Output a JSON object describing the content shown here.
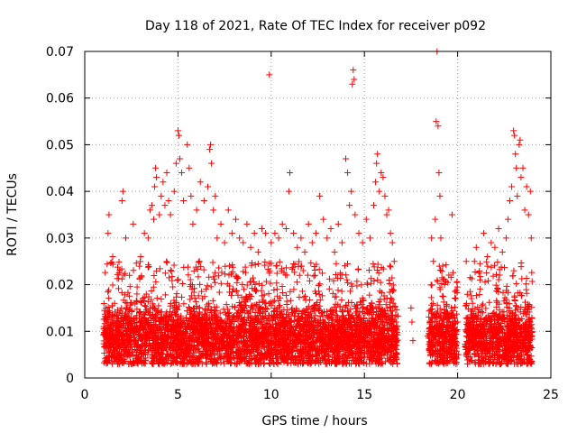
{
  "chart_data": {
    "type": "scatter",
    "title": "Day 118 of 2021, Rate Of TEC Index for receiver p092",
    "xlabel": "GPS time / hours",
    "ylabel": "ROTI / TECUs",
    "xlim": [
      0,
      25
    ],
    "ylim": [
      0,
      0.07
    ],
    "xticks": [
      "0",
      "5",
      "10",
      "15",
      "20",
      "25"
    ],
    "yticks": [
      "0",
      "0.01",
      "0.02",
      "0.03",
      "0.04",
      "0.05",
      "0.06",
      "0.07"
    ],
    "grid": true,
    "marker": "plus",
    "color": "#ff0000",
    "series": [
      {
        "points": [
          [
            1.1,
            0.009
          ],
          [
            1.2,
            0.012
          ],
          [
            1.25,
            0.031
          ],
          [
            1.3,
            0.035
          ],
          [
            1.5,
            0.026
          ],
          [
            1.6,
            0.016
          ],
          [
            1.8,
            0.004
          ],
          [
            2.0,
            0.038
          ],
          [
            2.05,
            0.04
          ],
          [
            2.2,
            0.03
          ],
          [
            2.4,
            0.022
          ],
          [
            2.6,
            0.033
          ],
          [
            2.8,
            0.018
          ],
          [
            3.0,
            0.026
          ],
          [
            3.2,
            0.031
          ],
          [
            3.4,
            0.03
          ],
          [
            3.5,
            0.036
          ],
          [
            3.6,
            0.037
          ],
          [
            3.7,
            0.034
          ],
          [
            3.75,
            0.041
          ],
          [
            3.8,
            0.045
          ],
          [
            3.85,
            0.043
          ],
          [
            4.0,
            0.035
          ],
          [
            4.1,
            0.039
          ],
          [
            4.2,
            0.042
          ],
          [
            4.3,
            0.037
          ],
          [
            4.4,
            0.044
          ],
          [
            4.5,
            0.038
          ],
          [
            4.6,
            0.035
          ],
          [
            4.8,
            0.04
          ],
          [
            4.9,
            0.046
          ],
          [
            5.0,
            0.053
          ],
          [
            5.05,
            0.052
          ],
          [
            5.1,
            0.047
          ],
          [
            5.2,
            0.044
          ],
          [
            5.3,
            0.038
          ],
          [
            5.5,
            0.05
          ],
          [
            5.6,
            0.045
          ],
          [
            5.7,
            0.039
          ],
          [
            5.8,
            0.033
          ],
          [
            6.0,
            0.036
          ],
          [
            6.2,
            0.042
          ],
          [
            6.4,
            0.038
          ],
          [
            6.6,
            0.041
          ],
          [
            6.7,
            0.049
          ],
          [
            6.75,
            0.05
          ],
          [
            6.8,
            0.046
          ],
          [
            6.9,
            0.036
          ],
          [
            7.0,
            0.039
          ],
          [
            7.1,
            0.03
          ],
          [
            7.3,
            0.033
          ],
          [
            7.5,
            0.029
          ],
          [
            7.7,
            0.036
          ],
          [
            7.9,
            0.031
          ],
          [
            8.1,
            0.034
          ],
          [
            8.3,
            0.03
          ],
          [
            8.5,
            0.029
          ],
          [
            8.7,
            0.033
          ],
          [
            8.9,
            0.028
          ],
          [
            9.1,
            0.031
          ],
          [
            9.3,
            0.027
          ],
          [
            9.5,
            0.032
          ],
          [
            9.7,
            0.031
          ],
          [
            9.9,
            0.065
          ],
          [
            10.0,
            0.029
          ],
          [
            10.2,
            0.031
          ],
          [
            10.4,
            0.03
          ],
          [
            10.6,
            0.033
          ],
          [
            10.8,
            0.032
          ],
          [
            10.95,
            0.04
          ],
          [
            11.0,
            0.044
          ],
          [
            11.2,
            0.031
          ],
          [
            11.4,
            0.028
          ],
          [
            11.6,
            0.03
          ],
          [
            11.8,
            0.027
          ],
          [
            12.0,
            0.033
          ],
          [
            12.2,
            0.029
          ],
          [
            12.4,
            0.031
          ],
          [
            12.6,
            0.039
          ],
          [
            12.8,
            0.034
          ],
          [
            13.0,
            0.03
          ],
          [
            13.2,
            0.032
          ],
          [
            13.4,
            0.027
          ],
          [
            13.6,
            0.033
          ],
          [
            13.8,
            0.029
          ],
          [
            14.0,
            0.047
          ],
          [
            14.1,
            0.044
          ],
          [
            14.2,
            0.037
          ],
          [
            14.3,
            0.04
          ],
          [
            14.35,
            0.063
          ],
          [
            14.4,
            0.066
          ],
          [
            14.45,
            0.064
          ],
          [
            14.5,
            0.035
          ],
          [
            14.7,
            0.031
          ],
          [
            14.9,
            0.029
          ],
          [
            15.1,
            0.034
          ],
          [
            15.3,
            0.03
          ],
          [
            15.5,
            0.037
          ],
          [
            15.6,
            0.042
          ],
          [
            15.65,
            0.046
          ],
          [
            15.7,
            0.048
          ],
          [
            15.8,
            0.04
          ],
          [
            15.9,
            0.044
          ],
          [
            16.0,
            0.043
          ],
          [
            16.1,
            0.039
          ],
          [
            16.2,
            0.035
          ],
          [
            16.3,
            0.036
          ],
          [
            16.4,
            0.031
          ],
          [
            16.5,
            0.029
          ],
          [
            16.6,
            0.025
          ],
          [
            16.7,
            0.012
          ],
          [
            17.5,
            0.015
          ],
          [
            17.55,
            0.012
          ],
          [
            17.6,
            0.008
          ],
          [
            18.6,
            0.03
          ],
          [
            18.7,
            0.025
          ],
          [
            18.8,
            0.034
          ],
          [
            18.85,
            0.055
          ],
          [
            18.9,
            0.07
          ],
          [
            18.95,
            0.054
          ],
          [
            19.0,
            0.044
          ],
          [
            19.05,
            0.039
          ],
          [
            19.1,
            0.03
          ],
          [
            19.2,
            0.024
          ],
          [
            19.3,
            0.02
          ],
          [
            19.5,
            0.012
          ],
          [
            19.7,
            0.035
          ],
          [
            19.9,
            0.017
          ],
          [
            20.0,
            0.012
          ],
          [
            20.05,
            0.005
          ],
          [
            20.5,
            0.012
          ],
          [
            20.6,
            0.008
          ],
          [
            20.8,
            0.016
          ],
          [
            20.9,
            0.025
          ],
          [
            21.0,
            0.028
          ],
          [
            21.2,
            0.021
          ],
          [
            21.4,
            0.031
          ],
          [
            21.6,
            0.026
          ],
          [
            21.8,
            0.029
          ],
          [
            22.0,
            0.028
          ],
          [
            22.2,
            0.032
          ],
          [
            22.4,
            0.027
          ],
          [
            22.6,
            0.03
          ],
          [
            22.7,
            0.034
          ],
          [
            22.8,
            0.038
          ],
          [
            22.9,
            0.041
          ],
          [
            23.0,
            0.053
          ],
          [
            23.05,
            0.052
          ],
          [
            23.1,
            0.048
          ],
          [
            23.15,
            0.045
          ],
          [
            23.2,
            0.039
          ],
          [
            23.3,
            0.05
          ],
          [
            23.35,
            0.051
          ],
          [
            23.4,
            0.043
          ],
          [
            23.5,
            0.045
          ],
          [
            23.6,
            0.036
          ],
          [
            23.7,
            0.041
          ],
          [
            23.8,
            0.035
          ],
          [
            23.9,
            0.04
          ],
          [
            23.95,
            0.03
          ]
        ],
        "dense_band": {
          "segments": [
            [
              1.0,
              16.8
            ],
            [
              18.4,
              20.0
            ],
            [
              20.4,
              24.0
            ]
          ],
          "y_range": [
            0.003,
            0.025
          ],
          "y_mode": 0.009
        }
      }
    ]
  }
}
